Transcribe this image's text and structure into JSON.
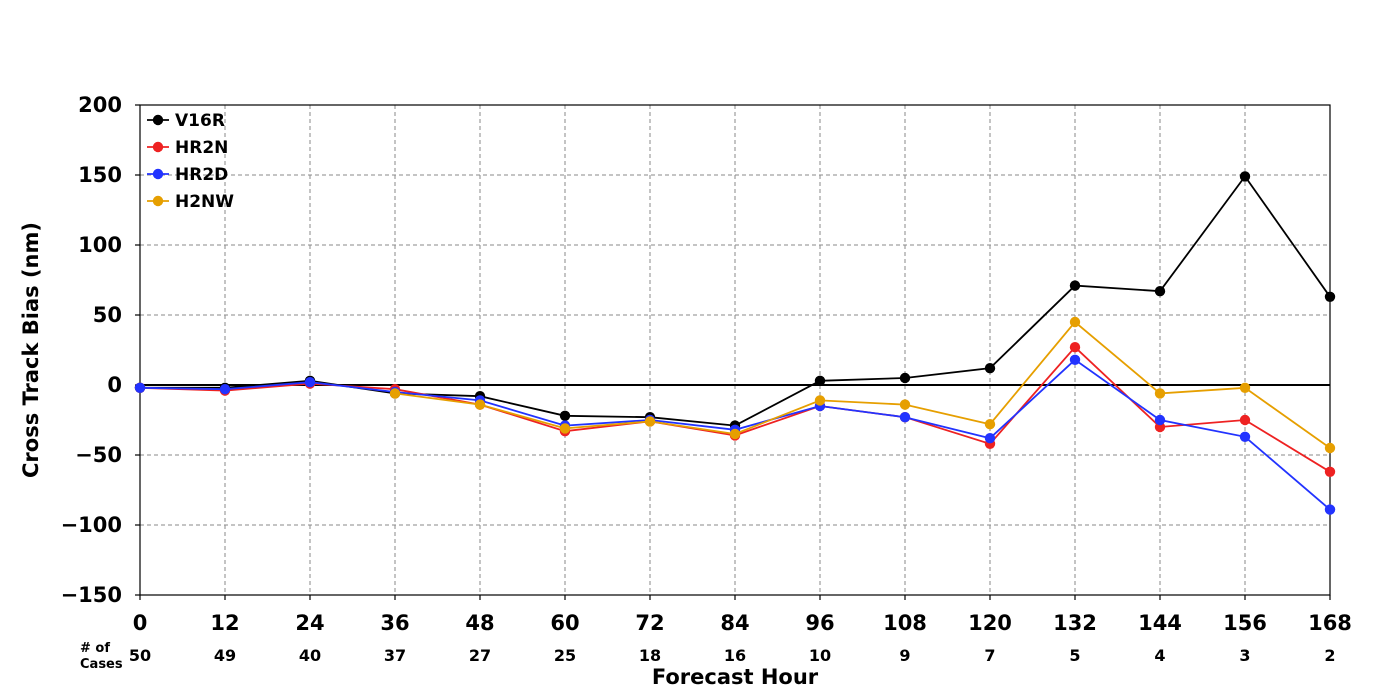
{
  "chart_data": {
    "type": "line",
    "xlabel": "Forecast Hour",
    "ylabel": "Cross Track Bias (nm)",
    "x": [
      0,
      12,
      24,
      36,
      48,
      60,
      72,
      84,
      96,
      108,
      120,
      132,
      144,
      156,
      168
    ],
    "xlim": [
      0,
      168
    ],
    "ylim": [
      -150,
      200
    ],
    "yticks": [
      -150,
      -100,
      -50,
      0,
      50,
      100,
      150,
      200
    ],
    "ytick_labels": [
      "−150",
      "−100",
      "−50",
      "0",
      "50",
      "100",
      "150",
      "200"
    ],
    "cases_header": [
      "# of",
      "Cases"
    ],
    "cases": [
      50,
      49,
      40,
      37,
      27,
      25,
      18,
      16,
      10,
      9,
      7,
      5,
      4,
      3,
      2
    ],
    "grid": true,
    "zero_line": true,
    "legend_position": "top-left",
    "series": [
      {
        "name": "V16R",
        "color": "#000000",
        "values": [
          -2,
          -2,
          3,
          -6,
          -8,
          -22,
          -23,
          -29,
          3,
          5,
          12,
          71,
          67,
          149,
          63
        ]
      },
      {
        "name": "HR2N",
        "color": "#ee2222",
        "values": [
          -2,
          -4,
          1,
          -3,
          -14,
          -33,
          -26,
          -36,
          -15,
          -23,
          -42,
          27,
          -30,
          -25,
          -62
        ]
      },
      {
        "name": "HR2D",
        "color": "#2233ff",
        "values": [
          -2,
          -3,
          2,
          -5,
          -11,
          -29,
          -25,
          -32,
          -15,
          -23,
          -38,
          18,
          -25,
          -37,
          -89
        ]
      },
      {
        "name": "H2NW",
        "color": "#e69f00",
        "values": [
          null,
          null,
          null,
          -6,
          -14,
          -31,
          -26,
          -35,
          -11,
          -14,
          -28,
          45,
          -6,
          -2,
          -45
        ]
      }
    ]
  }
}
